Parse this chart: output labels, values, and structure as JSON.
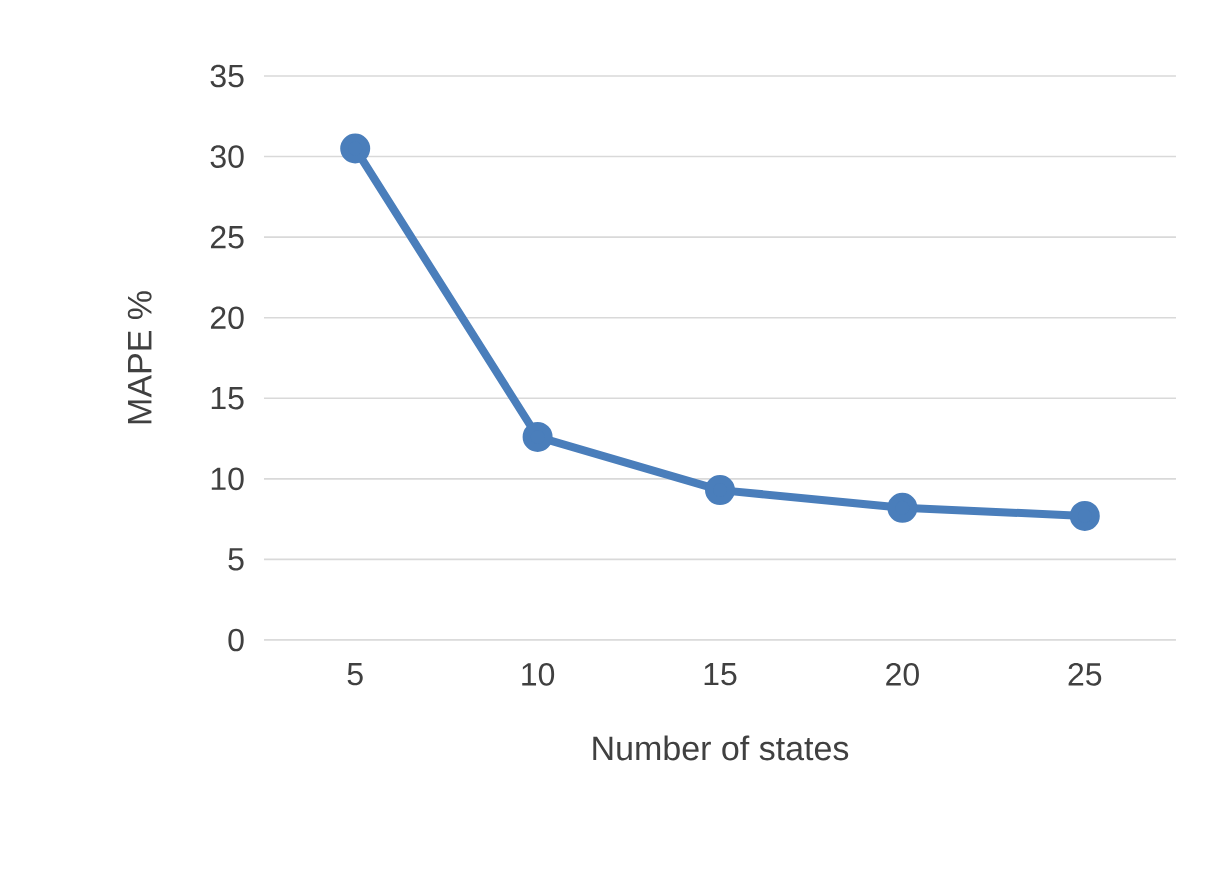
{
  "chart_data": {
    "type": "line",
    "xlabel": "Number of states",
    "ylabel": "MAPE %",
    "categories": [
      "5",
      "10",
      "15",
      "20",
      "25"
    ],
    "series": [
      {
        "color": "#4a7ebb",
        "values": [
          30.5,
          12.6,
          9.3,
          8.2,
          7.7
        ]
      }
    ],
    "ylim": [
      0,
      35
    ],
    "yticks": [
      0,
      5,
      10,
      15,
      20,
      25,
      30,
      35
    ],
    "grid": "y",
    "marker": "circle",
    "line_style": "solid"
  }
}
